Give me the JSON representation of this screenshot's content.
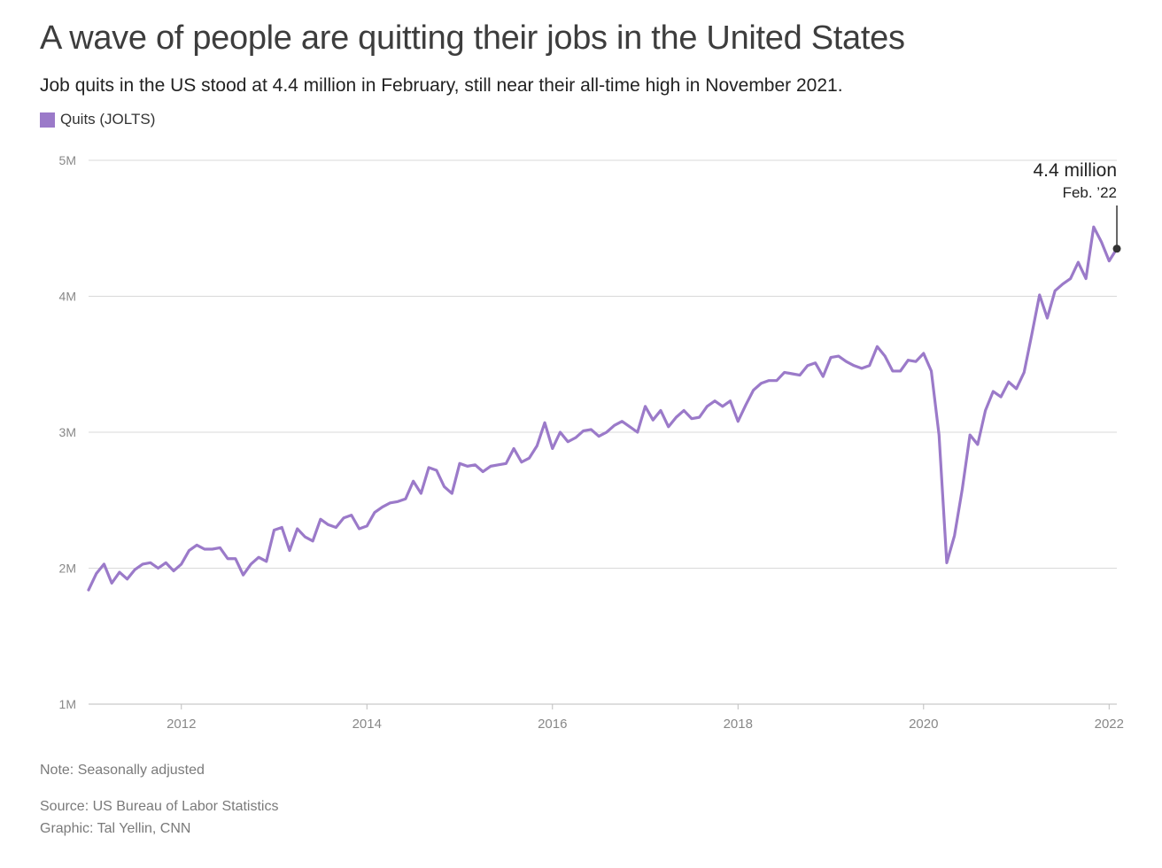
{
  "title": "A wave of people are quitting their jobs in the United States",
  "subtitle": "Job quits in the US stood at 4.4 million in February, still near their all-time high in November 2021.",
  "legend": {
    "label": "Quits (JOLTS)"
  },
  "colors": {
    "series": "#9b7ac9",
    "grid": "#d9d9d9",
    "axis": "#888888",
    "annotation": "#333333"
  },
  "annotation": {
    "value": "4.4 million",
    "date": "Feb. ’22"
  },
  "footer": {
    "note": "Note: Seasonally adjusted",
    "source": "Source: US Bureau of Labor Statistics",
    "graphic": "Graphic: Tal Yellin, CNN"
  },
  "chart_data": {
    "type": "line",
    "title": "A wave of people are quitting their jobs in the United States",
    "xlabel": "",
    "ylabel": "",
    "ylim": [
      1,
      5
    ],
    "xlim": [
      2011.0,
      2022.083
    ],
    "y_ticks": [
      {
        "value": 1,
        "label": "1M"
      },
      {
        "value": 2,
        "label": "2M"
      },
      {
        "value": 3,
        "label": "3M"
      },
      {
        "value": 4,
        "label": "4M"
      },
      {
        "value": 5,
        "label": "5M"
      }
    ],
    "x_ticks": [
      {
        "value": 2012,
        "label": "2012"
      },
      {
        "value": 2014,
        "label": "2014"
      },
      {
        "value": 2016,
        "label": "2016"
      },
      {
        "value": 2018,
        "label": "2018"
      },
      {
        "value": 2020,
        "label": "2020"
      },
      {
        "value": 2022,
        "label": "2022"
      }
    ],
    "grid": true,
    "legend_position": "top-left",
    "unit": "millions",
    "series": [
      {
        "name": "Quits (JOLTS)",
        "x_start": "2011-01",
        "frequency": "monthly",
        "values": [
          1.84,
          1.96,
          2.03,
          1.89,
          1.97,
          1.92,
          1.99,
          2.03,
          2.04,
          2.0,
          2.04,
          1.98,
          2.03,
          2.13,
          2.17,
          2.14,
          2.14,
          2.15,
          2.07,
          2.07,
          1.95,
          2.03,
          2.08,
          2.05,
          2.28,
          2.3,
          2.13,
          2.29,
          2.23,
          2.2,
          2.36,
          2.32,
          2.3,
          2.37,
          2.39,
          2.29,
          2.31,
          2.41,
          2.45,
          2.48,
          2.49,
          2.51,
          2.64,
          2.55,
          2.74,
          2.72,
          2.6,
          2.55,
          2.77,
          2.75,
          2.76,
          2.71,
          2.75,
          2.76,
          2.77,
          2.88,
          2.78,
          2.81,
          2.9,
          3.07,
          2.88,
          3.0,
          2.93,
          2.96,
          3.01,
          3.02,
          2.97,
          3.0,
          3.05,
          3.08,
          3.04,
          3.0,
          3.19,
          3.09,
          3.16,
          3.04,
          3.11,
          3.16,
          3.1,
          3.11,
          3.19,
          3.23,
          3.19,
          3.23,
          3.08,
          3.2,
          3.31,
          3.36,
          3.38,
          3.38,
          3.44,
          3.43,
          3.42,
          3.49,
          3.51,
          3.41,
          3.55,
          3.56,
          3.52,
          3.49,
          3.47,
          3.49,
          3.63,
          3.56,
          3.45,
          3.45,
          3.53,
          3.52,
          3.58,
          3.45,
          2.98,
          2.04,
          2.24,
          2.58,
          2.98,
          2.91,
          3.16,
          3.3,
          3.26,
          3.37,
          3.32,
          3.44,
          3.72,
          4.01,
          3.84,
          4.04,
          4.09,
          4.13,
          4.25,
          4.13,
          4.51,
          4.4,
          4.26,
          4.35
        ]
      }
    ],
    "annotations": [
      {
        "x": "2022-02",
        "y": 4.35,
        "label": "4.4 million",
        "sublabel": "Feb. ’22"
      }
    ]
  }
}
